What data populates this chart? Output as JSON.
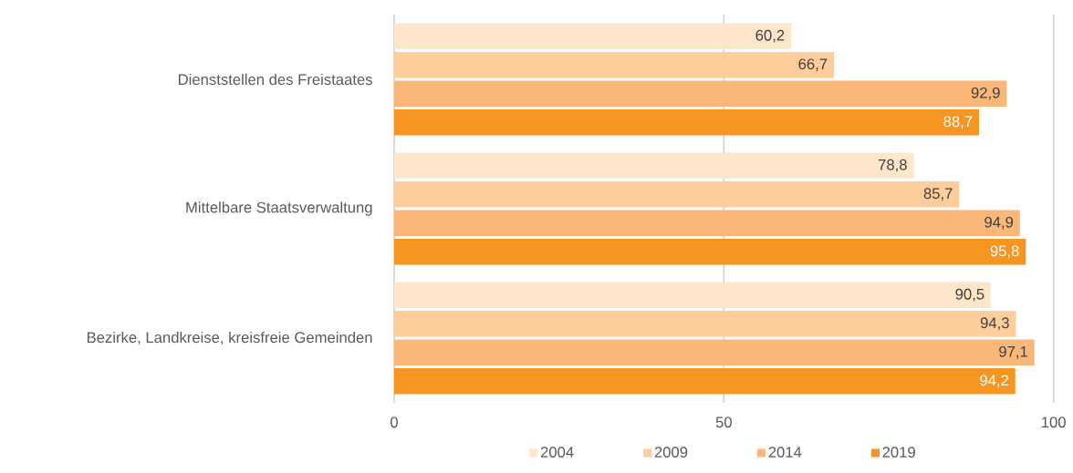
{
  "chart_data": {
    "type": "bar",
    "orientation": "horizontal",
    "categories": [
      "Dienststellen des Freistaates",
      "Mittelbare Staatsverwaltung",
      "Bezirke, Landkreise, kreisfreie Gemeinden"
    ],
    "series": [
      {
        "name": "2004",
        "color": "#fde6c9",
        "values": [
          60.2,
          78.8,
          90.5
        ],
        "value_labels": [
          "60,2",
          "78,8",
          "90,5"
        ]
      },
      {
        "name": "2009",
        "color": "#fdcd9c",
        "values": [
          66.7,
          85.7,
          94.3
        ],
        "value_labels": [
          "66,7",
          "85,7",
          "94,3"
        ]
      },
      {
        "name": "2014",
        "color": "#fbb777",
        "values": [
          92.9,
          94.9,
          97.1
        ],
        "value_labels": [
          "92,9",
          "94,9",
          "97,1"
        ]
      },
      {
        "name": "2019",
        "color": "#f69520",
        "values": [
          88.7,
          95.8,
          94.2
        ],
        "value_labels": [
          "88,7",
          "95,8",
          "94,2"
        ]
      }
    ],
    "xlim": [
      0,
      100
    ],
    "xticks": [
      0,
      50,
      100
    ],
    "grid": "x",
    "legend": "bottom"
  }
}
